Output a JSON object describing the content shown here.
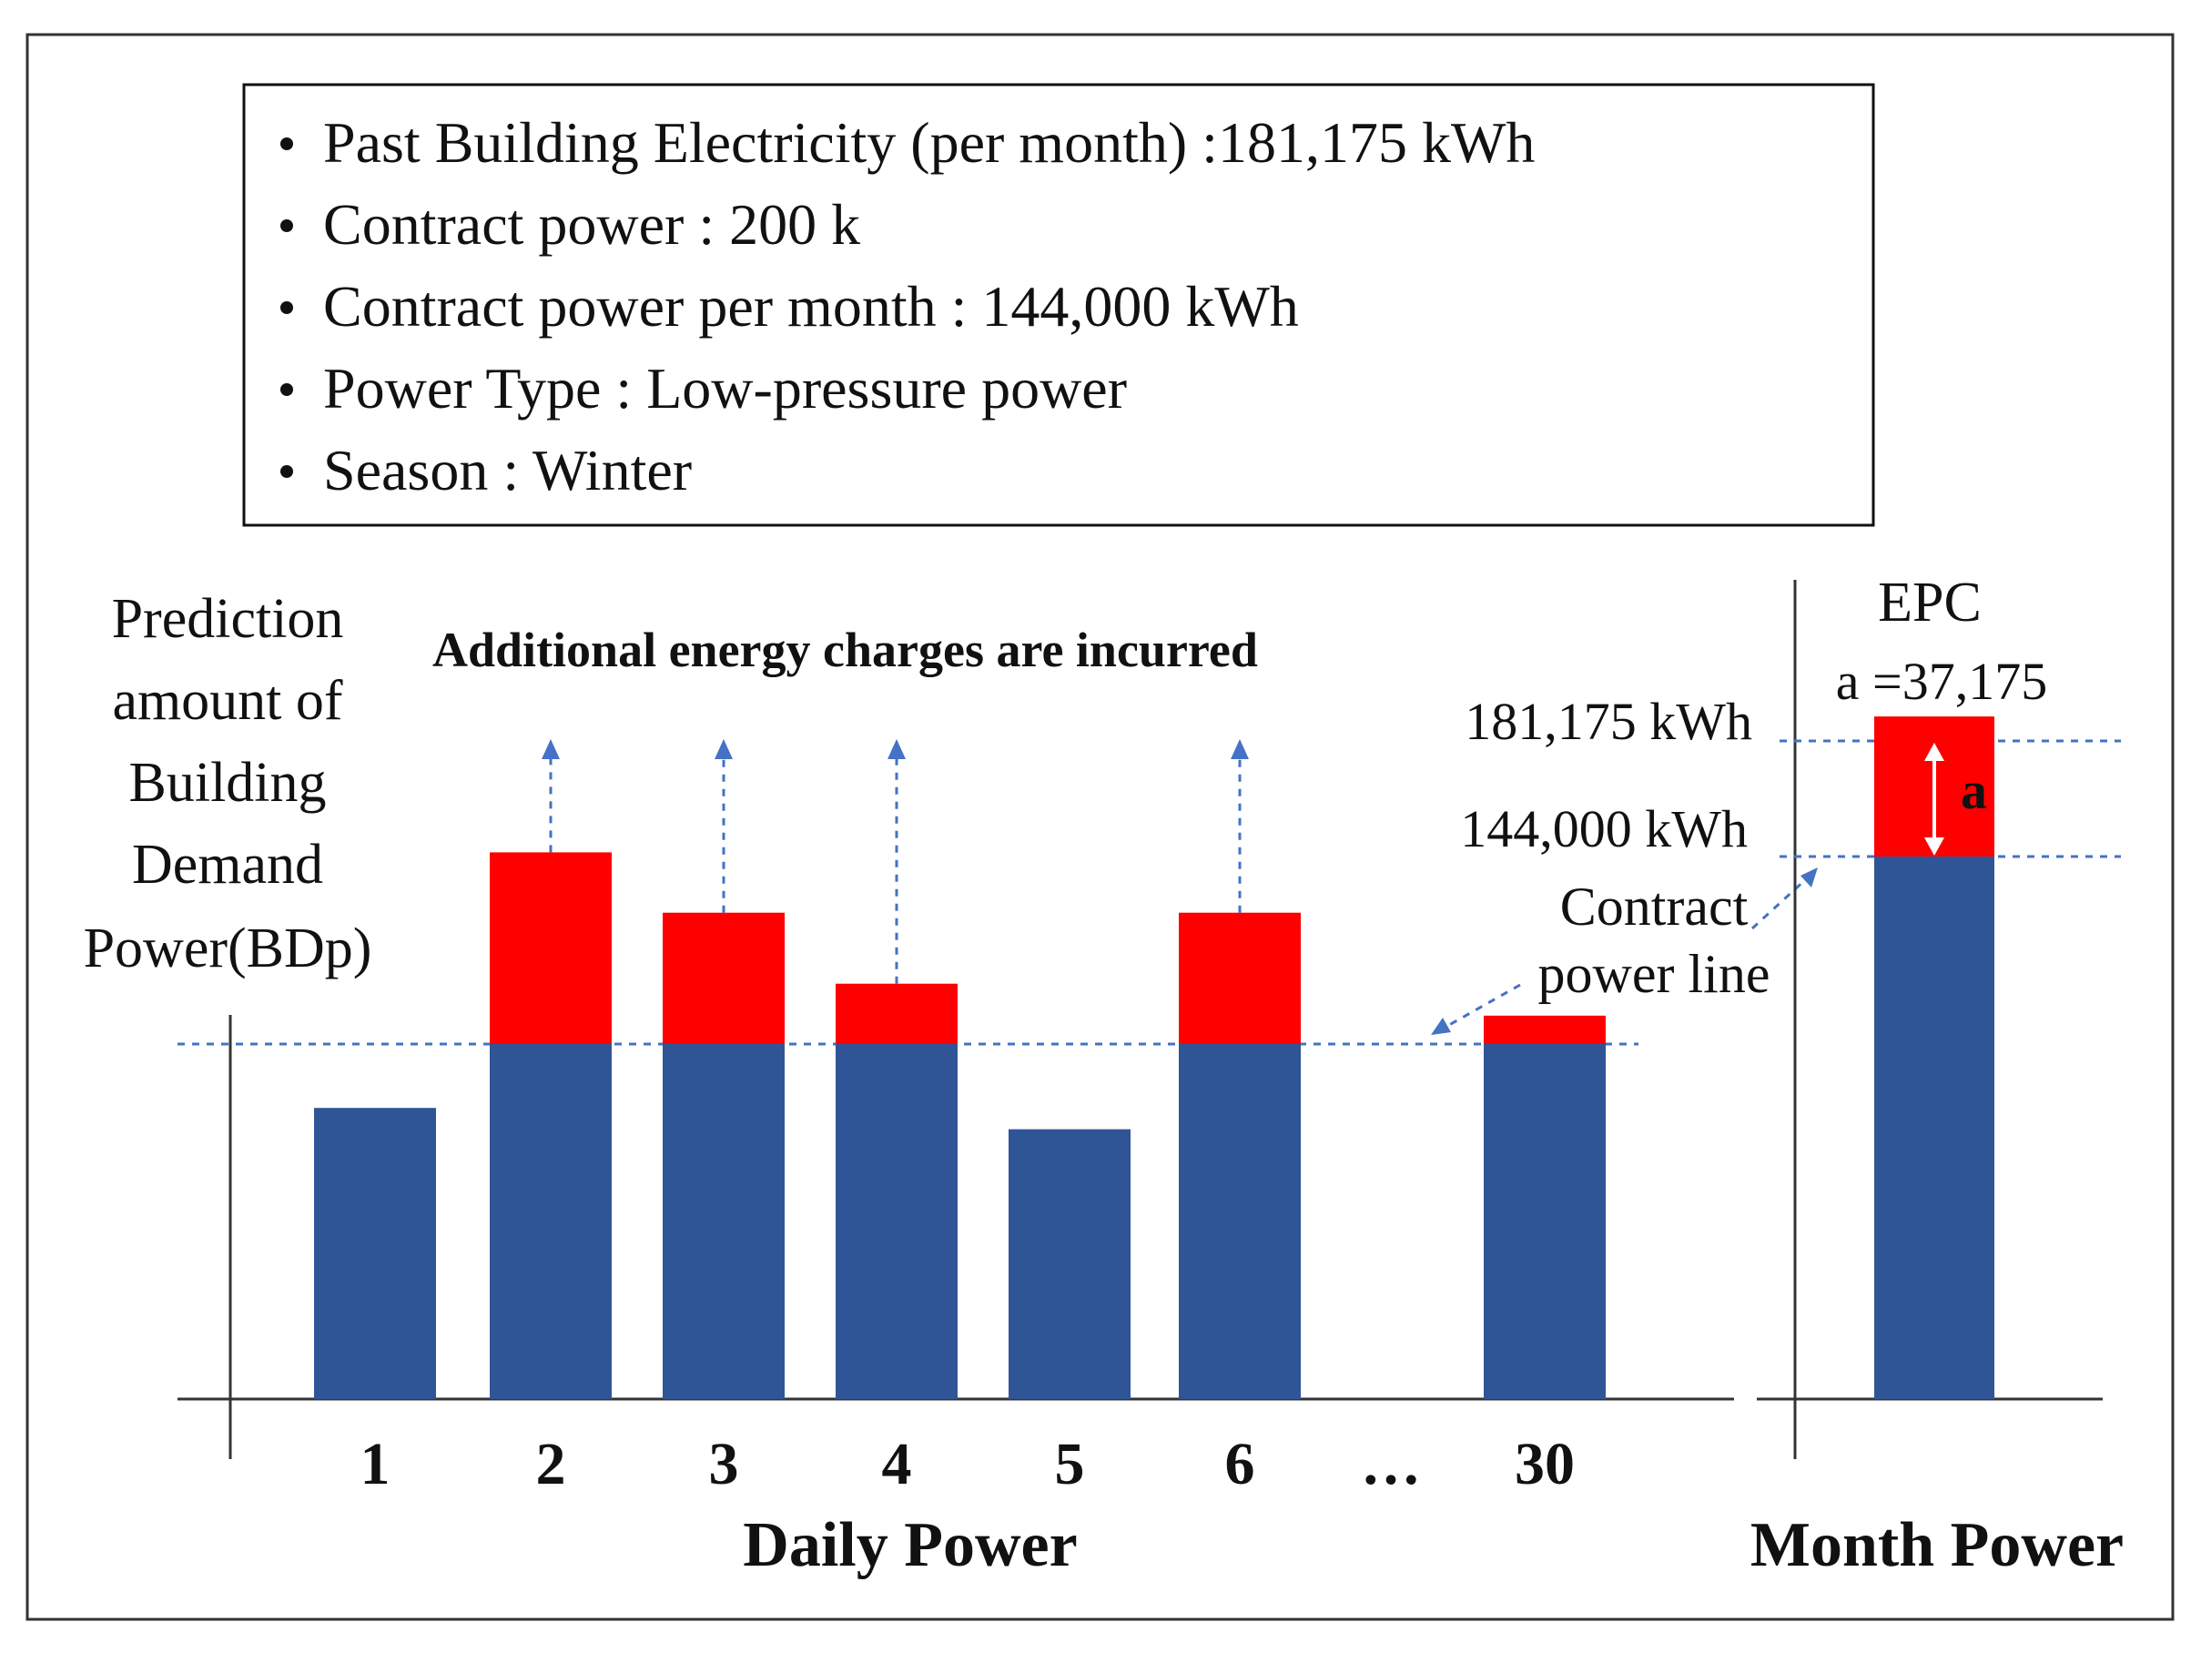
{
  "info_box": {
    "items": [
      "Past Building Electricity (per month) :181,175 kWh",
      "Contract power : 200 k",
      "Contract power per month : 144,000  kWh",
      "Power Type : Low-pressure power",
      "Season : Winter"
    ]
  },
  "y_label_lines": [
    "Prediction",
    "amount of",
    "Building",
    "Demand",
    "Power(BDp)"
  ],
  "annotation_title": "Additional energy charges are incurred",
  "contract_line_label": [
    "Contract",
    "power  line"
  ],
  "epc": {
    "title": "EPC",
    "formula": "a =37,175",
    "upper_value_label": "181,175 kWh",
    "lower_value_label": "144,000 kWh",
    "bar_label": "a"
  },
  "daily_axis_title": "Daily Power",
  "month_axis_title": "Month Power",
  "ellipsis": "…",
  "colors": {
    "base": "#2f5597",
    "excess": "#ff0000",
    "guide": "#4472c4"
  },
  "chart_data": {
    "type": "bar",
    "categories": [
      "1",
      "2",
      "3",
      "4",
      "5",
      "6",
      "30"
    ],
    "series": [
      {
        "values": [
          0.82,
          1.0,
          1.0,
          1.0,
          0.76,
          1.0,
          1.0
        ]
      },
      {
        "values": [
          0.0,
          0.54,
          0.37,
          0.17,
          0.0,
          0.37,
          0.08
        ]
      }
    ],
    "contract_line": 1.0,
    "month": {
      "contract_kwh": 144000,
      "actual_kwh": 181175,
      "excess_kwh": 37175
    }
  }
}
